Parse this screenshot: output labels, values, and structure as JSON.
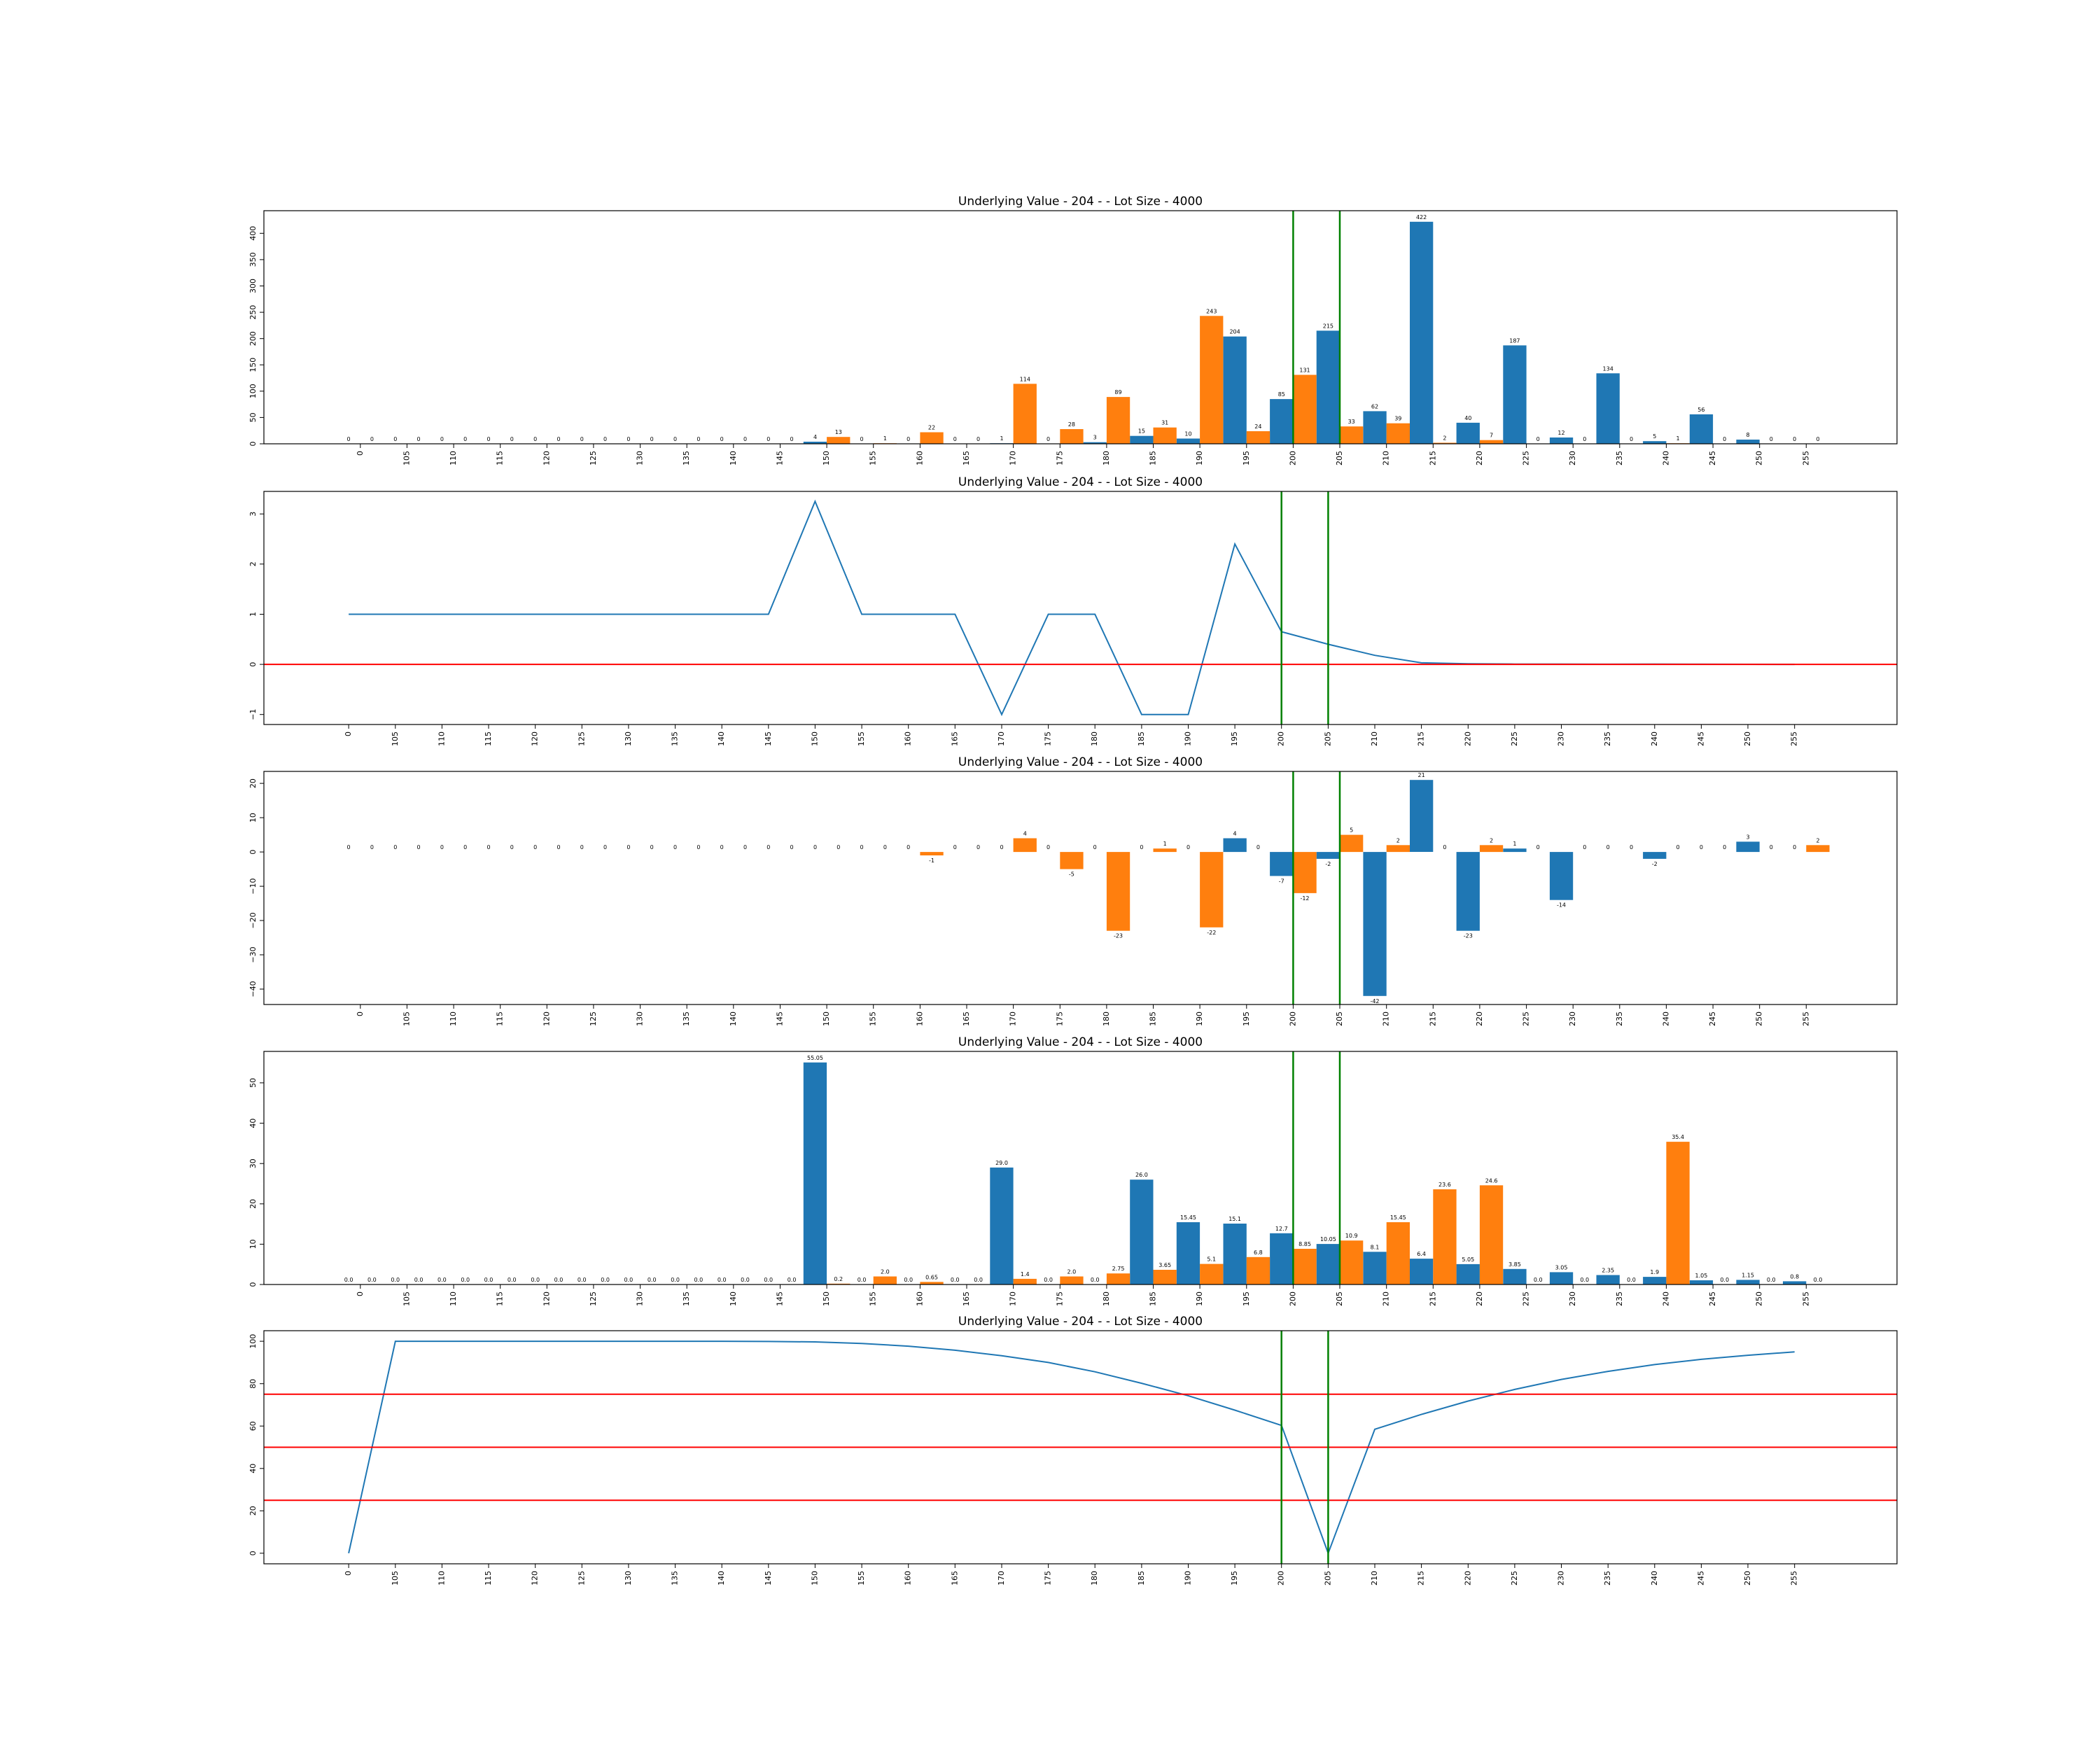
{
  "chart_data": [
    {
      "type": "bar",
      "title": "Underlying Value - 204 - - Lot Size - 4000",
      "categories": [
        "0",
        "105",
        "110",
        "115",
        "120",
        "125",
        "130",
        "135",
        "140",
        "145",
        "150",
        "155",
        "160",
        "165",
        "170",
        "175",
        "180",
        "185",
        "190",
        "195",
        "200",
        "205",
        "210",
        "215",
        "220",
        "225",
        "230",
        "235",
        "240",
        "245",
        "250",
        "255"
      ],
      "series": [
        {
          "values": [
            0,
            0,
            0,
            0,
            0,
            0,
            0,
            0,
            0,
            0,
            4,
            0,
            0,
            0,
            1,
            0,
            3,
            15,
            10,
            204,
            85,
            215,
            62,
            422,
            40,
            187,
            12,
            134,
            5,
            56,
            8,
            0
          ],
          "color": "#1f77b4"
        },
        {
          "values": [
            0,
            0,
            0,
            0,
            0,
            0,
            0,
            0,
            0,
            0,
            13,
            1,
            22,
            0,
            114,
            28,
            89,
            31,
            243,
            24,
            131,
            33,
            39,
            2,
            7,
            0,
            0,
            0,
            1,
            0,
            0,
            0
          ],
          "color": "#ff7f0e"
        }
      ],
      "value_labels": [
        [
          "0",
          "0",
          "0",
          "0",
          "0",
          "0",
          "0",
          "0",
          "0",
          "0",
          "4",
          "0",
          "0",
          "0",
          "1",
          "0",
          "3",
          "15",
          "10",
          "204",
          "85",
          "215",
          "62",
          "422",
          "40",
          "187",
          "12",
          "134",
          "5",
          "56",
          "8",
          "0"
        ],
        [
          "0",
          "0",
          "0",
          "0",
          "0",
          "0",
          "0",
          "0",
          "0",
          "0",
          "13",
          "1",
          "22",
          "0",
          "114",
          "28",
          "89",
          "31",
          "243",
          "24",
          "131",
          "33",
          "39",
          "2",
          "7",
          "0",
          "0",
          "0",
          "1",
          "0",
          "0",
          "0"
        ]
      ],
      "yticks": [
        0,
        50,
        100,
        150,
        200,
        250,
        300,
        350,
        400
      ],
      "ylim": [
        0,
        443
      ],
      "vlines_at_categories": [
        "200",
        "205"
      ]
    },
    {
      "type": "line",
      "title": "Underlying Value - 204 - - Lot Size - 4000",
      "categories": [
        "0",
        "105",
        "110",
        "115",
        "120",
        "125",
        "130",
        "135",
        "140",
        "145",
        "150",
        "155",
        "160",
        "165",
        "170",
        "175",
        "180",
        "185",
        "190",
        "195",
        "200",
        "205",
        "210",
        "215",
        "220",
        "225",
        "230",
        "235",
        "240",
        "245",
        "250",
        "255"
      ],
      "series": [
        {
          "values": [
            1,
            1,
            1,
            1,
            1,
            1,
            1,
            1,
            1,
            1,
            3.25,
            1,
            1,
            1,
            -1,
            1,
            1,
            -1,
            -1,
            2.4,
            0.65,
            0.4,
            0.18,
            0.03,
            0.01,
            0.005,
            0.003,
            0.002,
            0.003,
            0.002,
            0.001,
            0
          ],
          "color": "#1f77b4"
        }
      ],
      "yticks": [
        -1,
        0,
        1,
        2,
        3
      ],
      "ylim": [
        -1.2,
        3.45
      ],
      "hlines": [
        0
      ],
      "vlines_at_categories": [
        "200",
        "205"
      ]
    },
    {
      "type": "bar",
      "title": "Underlying Value - 204 - - Lot Size - 4000",
      "categories": [
        "0",
        "105",
        "110",
        "115",
        "120",
        "125",
        "130",
        "135",
        "140",
        "145",
        "150",
        "155",
        "160",
        "165",
        "170",
        "175",
        "180",
        "185",
        "190",
        "195",
        "200",
        "205",
        "210",
        "215",
        "220",
        "225",
        "230",
        "235",
        "240",
        "245",
        "250",
        "255"
      ],
      "series": [
        {
          "values": [
            0,
            0,
            0,
            0,
            0,
            0,
            0,
            0,
            0,
            0,
            0,
            0,
            0,
            0,
            0,
            0,
            0,
            0,
            0,
            4,
            -7,
            -2,
            -42,
            21,
            -23,
            1,
            -14,
            0,
            -2,
            0,
            3,
            0
          ],
          "color": "#1f77b4"
        },
        {
          "values": [
            0,
            0,
            0,
            0,
            0,
            0,
            0,
            0,
            0,
            0,
            0,
            0,
            -1,
            0,
            4,
            -5,
            -23,
            1,
            -22,
            0,
            -12,
            5,
            2,
            0,
            2,
            0,
            0,
            0,
            0,
            0,
            0,
            2
          ],
          "color": "#ff7f0e"
        }
      ],
      "value_labels": [
        [
          "0",
          "0",
          "0",
          "0",
          "0",
          "0",
          "0",
          "0",
          "0",
          "0",
          "0",
          "0",
          "0",
          "0",
          "0",
          "0",
          "0",
          "0",
          "0",
          "4",
          "-7",
          "-2",
          "-42",
          "21",
          "-23",
          "1",
          "-14",
          "0",
          "-2",
          "0",
          "3",
          "0"
        ],
        [
          "0",
          "0",
          "0",
          "0",
          "0",
          "0",
          "0",
          "0",
          "0",
          "0",
          "0",
          "0",
          "-1",
          "0",
          "4",
          "-5",
          "-23",
          "1",
          "-22",
          "0",
          "-12",
          "5",
          "2",
          "0",
          "2",
          "0",
          "0",
          "0",
          "0",
          "0",
          "0",
          "2"
        ]
      ],
      "yticks": [
        -40,
        -30,
        -20,
        -10,
        0,
        10,
        20
      ],
      "ylim": [
        -44.5,
        23.5
      ],
      "vlines_at_categories": [
        "200",
        "205"
      ]
    },
    {
      "type": "bar",
      "title": "Underlying Value - 204 - - Lot Size - 4000",
      "categories": [
        "0",
        "105",
        "110",
        "115",
        "120",
        "125",
        "130",
        "135",
        "140",
        "145",
        "150",
        "155",
        "160",
        "165",
        "170",
        "175",
        "180",
        "185",
        "190",
        "195",
        "200",
        "205",
        "210",
        "215",
        "220",
        "225",
        "230",
        "235",
        "240",
        "245",
        "250",
        "255"
      ],
      "series": [
        {
          "values": [
            0,
            0,
            0,
            0,
            0,
            0,
            0,
            0,
            0,
            0,
            55.05,
            0,
            0,
            0,
            29.0,
            0,
            0,
            26.0,
            15.45,
            15.1,
            12.7,
            10.05,
            8.1,
            6.4,
            5.05,
            3.85,
            3.05,
            2.35,
            1.9,
            1.05,
            1.15,
            0.8
          ],
          "color": "#1f77b4"
        },
        {
          "values": [
            0,
            0,
            0,
            0,
            0,
            0,
            0,
            0,
            0,
            0,
            0.2,
            2.0,
            0.65,
            0,
            1.4,
            2.0,
            2.75,
            3.65,
            5.1,
            6.8,
            8.85,
            10.9,
            15.45,
            23.6,
            24.6,
            0,
            0,
            0,
            35.4,
            0,
            0,
            0
          ],
          "color": "#ff7f0e"
        }
      ],
      "value_labels": [
        [
          "0.0",
          "0.0",
          "0.0",
          "0.0",
          "0.0",
          "0.0",
          "0.0",
          "0.0",
          "0.0",
          "0.0",
          "55.05",
          "0.0",
          "0.0",
          "0.0",
          "29.0",
          "0.0",
          "0.0",
          "26.0",
          "15.45",
          "15.1",
          "12.7",
          "10.05",
          "8.1",
          "6.4",
          "5.05",
          "3.85",
          "3.05",
          "2.35",
          "1.9",
          "1.05",
          "1.15",
          "0.8"
        ],
        [
          "0.0",
          "0.0",
          "0.0",
          "0.0",
          "0.0",
          "0.0",
          "0.0",
          "0.0",
          "0.0",
          "0.0",
          "0.2",
          "2.0",
          "0.65",
          "0.0",
          "1.4",
          "2.0",
          "2.75",
          "3.65",
          "5.1",
          "6.8",
          "8.85",
          "10.9",
          "15.45",
          "23.6",
          "24.6",
          "0.0",
          "0.0",
          "0.0",
          "35.4",
          "0.0",
          "0.0",
          "0.0"
        ]
      ],
      "yticks": [
        0,
        10,
        20,
        30,
        40,
        50
      ],
      "ylim": [
        0,
        57.8
      ],
      "vlines_at_categories": [
        "200",
        "205"
      ]
    },
    {
      "type": "line",
      "title": "Underlying Value - 204 - - Lot Size - 4000",
      "categories": [
        "0",
        "105",
        "110",
        "115",
        "120",
        "125",
        "130",
        "135",
        "140",
        "145",
        "150",
        "155",
        "160",
        "165",
        "170",
        "175",
        "180",
        "185",
        "190",
        "195",
        "200",
        "205",
        "210",
        "215",
        "220",
        "225",
        "230",
        "235",
        "240",
        "245",
        "250",
        "255"
      ],
      "series": [
        {
          "values": [
            0,
            100,
            100,
            100,
            100,
            100,
            100,
            100,
            100,
            99.9,
            99.7,
            99.0,
            97.7,
            95.8,
            93.2,
            90.0,
            85.6,
            80.2,
            74.3,
            67.5,
            60.3,
            0,
            58.5,
            65.5,
            71.8,
            77.3,
            82.0,
            85.8,
            89.0,
            91.5,
            93.4,
            95.0
          ],
          "color": "#1f77b4"
        }
      ],
      "yticks": [
        0,
        20,
        40,
        60,
        80,
        100
      ],
      "ylim": [
        -5,
        105
      ],
      "hlines": [
        25,
        50,
        75
      ],
      "vlines_at_categories": [
        "200",
        "205"
      ]
    }
  ],
  "colors": {
    "blue": "#1f77b4",
    "orange": "#ff7f0e",
    "vline": "#008000",
    "hline": "#ff0000",
    "axis": "#000000"
  }
}
